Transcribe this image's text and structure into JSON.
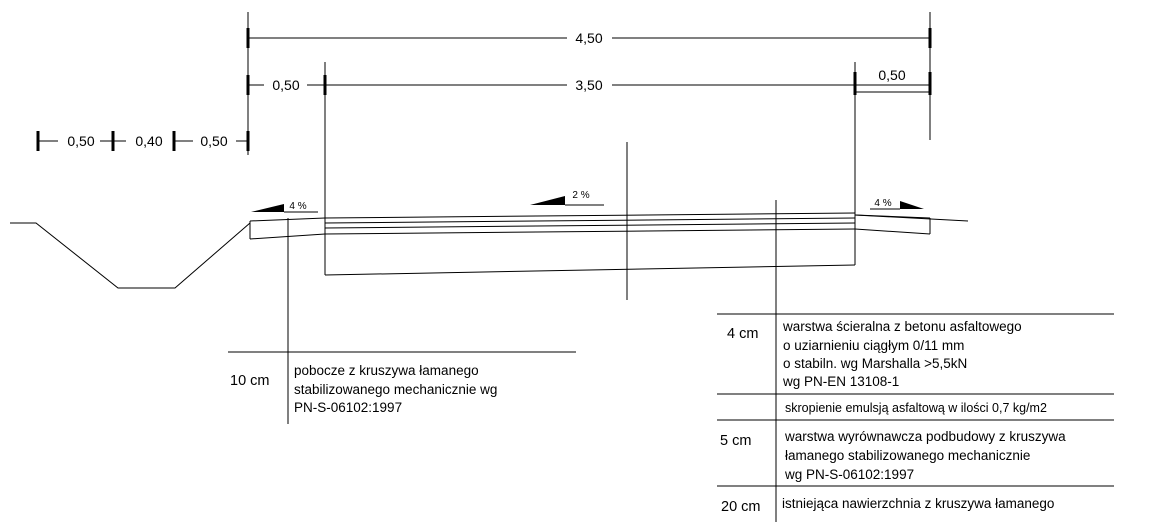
{
  "dimensions": {
    "total_width": "4,50",
    "left_shoulder": "0,50",
    "carriageway": "3,50",
    "right_shoulder": "0,50",
    "ditch_left": "0,50",
    "ditch_bottom": "0,40",
    "ditch_right": "0,50"
  },
  "slopes": {
    "left_shoulder": "4 %",
    "carriageway": "2 %",
    "right_shoulder": "4 %"
  },
  "shoulder_layer": {
    "thickness": "10 cm",
    "lines": [
      "pobocze z kruszywa łamanego",
      "stabilizowanego mechanicznie wg",
      "PN-S-06102:1997"
    ]
  },
  "pavement_layers": [
    {
      "thickness": "4 cm",
      "lines": [
        "warstwa ścieralna z betonu asfaltowego",
        "o uziarnieniu ciągłym 0/11 mm",
        "o stabiln. wg Marshalla >5,5kN",
        "wg PN-EN 13108-1"
      ]
    },
    {
      "thickness": "",
      "lines": [
        "skropienie emulsją asfaltową w ilości 0,7 kg/m2"
      ]
    },
    {
      "thickness": "5 cm",
      "lines": [
        "warstwa wyrównawcza podbudowy z kruszywa",
        "łamanego stabilizowanego mechanicznie",
        "wg PN-S-06102:1997"
      ]
    },
    {
      "thickness": "20 cm",
      "lines": [
        "istniejąca nawierzchnia z kruszywa łamanego"
      ]
    }
  ]
}
